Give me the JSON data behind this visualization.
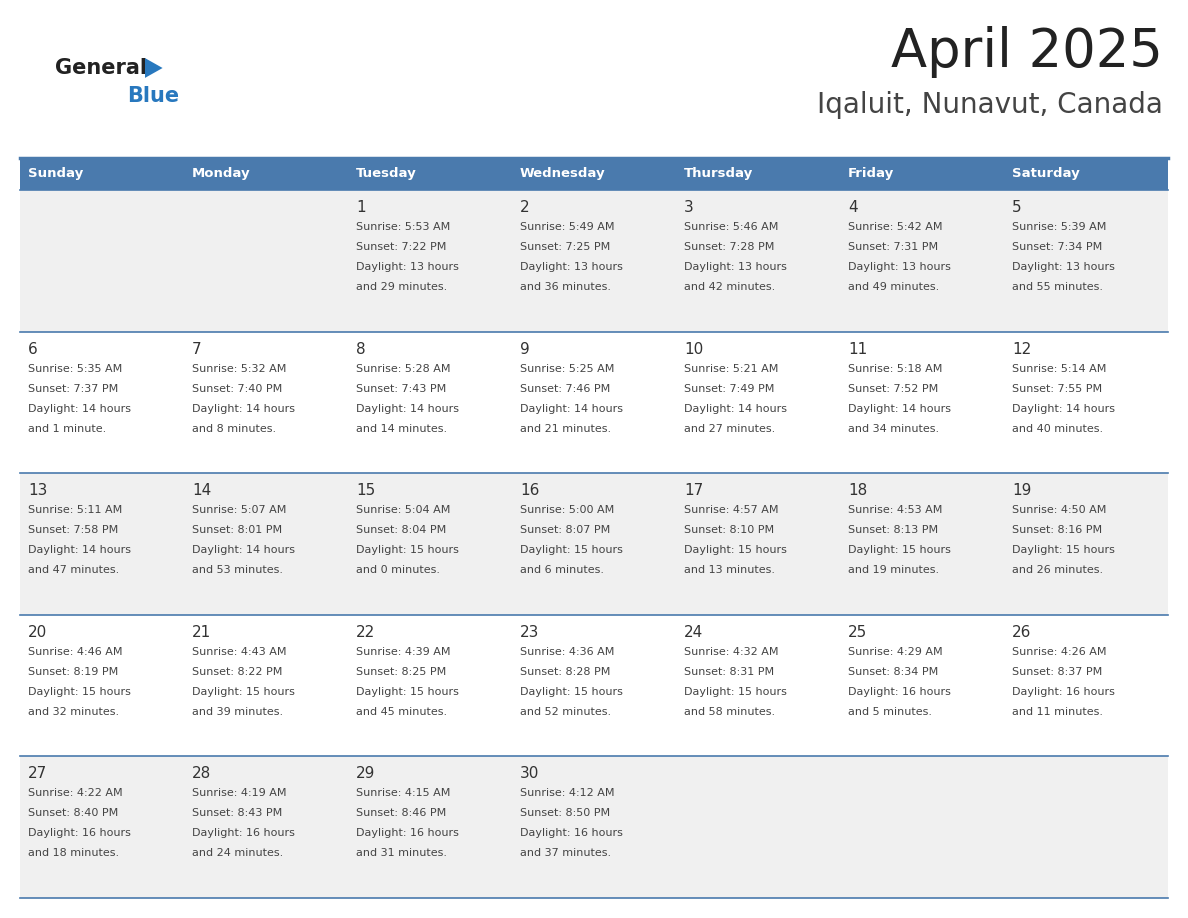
{
  "title": "April 2025",
  "subtitle": "Iqaluit, Nunavut, Canada",
  "header_bg": "#4a7aad",
  "header_text": "#ffffff",
  "day_names": [
    "Sunday",
    "Monday",
    "Tuesday",
    "Wednesday",
    "Thursday",
    "Friday",
    "Saturday"
  ],
  "cell_bg_row0": "#f0f0f0",
  "cell_bg_row1": "#ffffff",
  "cell_bg_row2": "#f0f0f0",
  "cell_bg_row3": "#ffffff",
  "cell_bg_row4": "#f0f0f0",
  "row_line_color": "#4a7aad",
  "day_num_color": "#333333",
  "text_color": "#444444",
  "title_color": "#222222",
  "subtitle_color": "#444444",
  "logo_text_color": "#222222",
  "logo_blue_color": "#2878be",
  "calendar": [
    [
      null,
      null,
      {
        "day": 1,
        "sunrise": "Sunrise: 5:53 AM",
        "sunset": "Sunset: 7:22 PM",
        "daylight": "Daylight: 13 hours",
        "daylight2": "and 29 minutes."
      },
      {
        "day": 2,
        "sunrise": "Sunrise: 5:49 AM",
        "sunset": "Sunset: 7:25 PM",
        "daylight": "Daylight: 13 hours",
        "daylight2": "and 36 minutes."
      },
      {
        "day": 3,
        "sunrise": "Sunrise: 5:46 AM",
        "sunset": "Sunset: 7:28 PM",
        "daylight": "Daylight: 13 hours",
        "daylight2": "and 42 minutes."
      },
      {
        "day": 4,
        "sunrise": "Sunrise: 5:42 AM",
        "sunset": "Sunset: 7:31 PM",
        "daylight": "Daylight: 13 hours",
        "daylight2": "and 49 minutes."
      },
      {
        "day": 5,
        "sunrise": "Sunrise: 5:39 AM",
        "sunset": "Sunset: 7:34 PM",
        "daylight": "Daylight: 13 hours",
        "daylight2": "and 55 minutes."
      }
    ],
    [
      {
        "day": 6,
        "sunrise": "Sunrise: 5:35 AM",
        "sunset": "Sunset: 7:37 PM",
        "daylight": "Daylight: 14 hours",
        "daylight2": "and 1 minute."
      },
      {
        "day": 7,
        "sunrise": "Sunrise: 5:32 AM",
        "sunset": "Sunset: 7:40 PM",
        "daylight": "Daylight: 14 hours",
        "daylight2": "and 8 minutes."
      },
      {
        "day": 8,
        "sunrise": "Sunrise: 5:28 AM",
        "sunset": "Sunset: 7:43 PM",
        "daylight": "Daylight: 14 hours",
        "daylight2": "and 14 minutes."
      },
      {
        "day": 9,
        "sunrise": "Sunrise: 5:25 AM",
        "sunset": "Sunset: 7:46 PM",
        "daylight": "Daylight: 14 hours",
        "daylight2": "and 21 minutes."
      },
      {
        "day": 10,
        "sunrise": "Sunrise: 5:21 AM",
        "sunset": "Sunset: 7:49 PM",
        "daylight": "Daylight: 14 hours",
        "daylight2": "and 27 minutes."
      },
      {
        "day": 11,
        "sunrise": "Sunrise: 5:18 AM",
        "sunset": "Sunset: 7:52 PM",
        "daylight": "Daylight: 14 hours",
        "daylight2": "and 34 minutes."
      },
      {
        "day": 12,
        "sunrise": "Sunrise: 5:14 AM",
        "sunset": "Sunset: 7:55 PM",
        "daylight": "Daylight: 14 hours",
        "daylight2": "and 40 minutes."
      }
    ],
    [
      {
        "day": 13,
        "sunrise": "Sunrise: 5:11 AM",
        "sunset": "Sunset: 7:58 PM",
        "daylight": "Daylight: 14 hours",
        "daylight2": "and 47 minutes."
      },
      {
        "day": 14,
        "sunrise": "Sunrise: 5:07 AM",
        "sunset": "Sunset: 8:01 PM",
        "daylight": "Daylight: 14 hours",
        "daylight2": "and 53 minutes."
      },
      {
        "day": 15,
        "sunrise": "Sunrise: 5:04 AM",
        "sunset": "Sunset: 8:04 PM",
        "daylight": "Daylight: 15 hours",
        "daylight2": "and 0 minutes."
      },
      {
        "day": 16,
        "sunrise": "Sunrise: 5:00 AM",
        "sunset": "Sunset: 8:07 PM",
        "daylight": "Daylight: 15 hours",
        "daylight2": "and 6 minutes."
      },
      {
        "day": 17,
        "sunrise": "Sunrise: 4:57 AM",
        "sunset": "Sunset: 8:10 PM",
        "daylight": "Daylight: 15 hours",
        "daylight2": "and 13 minutes."
      },
      {
        "day": 18,
        "sunrise": "Sunrise: 4:53 AM",
        "sunset": "Sunset: 8:13 PM",
        "daylight": "Daylight: 15 hours",
        "daylight2": "and 19 minutes."
      },
      {
        "day": 19,
        "sunrise": "Sunrise: 4:50 AM",
        "sunset": "Sunset: 8:16 PM",
        "daylight": "Daylight: 15 hours",
        "daylight2": "and 26 minutes."
      }
    ],
    [
      {
        "day": 20,
        "sunrise": "Sunrise: 4:46 AM",
        "sunset": "Sunset: 8:19 PM",
        "daylight": "Daylight: 15 hours",
        "daylight2": "and 32 minutes."
      },
      {
        "day": 21,
        "sunrise": "Sunrise: 4:43 AM",
        "sunset": "Sunset: 8:22 PM",
        "daylight": "Daylight: 15 hours",
        "daylight2": "and 39 minutes."
      },
      {
        "day": 22,
        "sunrise": "Sunrise: 4:39 AM",
        "sunset": "Sunset: 8:25 PM",
        "daylight": "Daylight: 15 hours",
        "daylight2": "and 45 minutes."
      },
      {
        "day": 23,
        "sunrise": "Sunrise: 4:36 AM",
        "sunset": "Sunset: 8:28 PM",
        "daylight": "Daylight: 15 hours",
        "daylight2": "and 52 minutes."
      },
      {
        "day": 24,
        "sunrise": "Sunrise: 4:32 AM",
        "sunset": "Sunset: 8:31 PM",
        "daylight": "Daylight: 15 hours",
        "daylight2": "and 58 minutes."
      },
      {
        "day": 25,
        "sunrise": "Sunrise: 4:29 AM",
        "sunset": "Sunset: 8:34 PM",
        "daylight": "Daylight: 16 hours",
        "daylight2": "and 5 minutes."
      },
      {
        "day": 26,
        "sunrise": "Sunrise: 4:26 AM",
        "sunset": "Sunset: 8:37 PM",
        "daylight": "Daylight: 16 hours",
        "daylight2": "and 11 minutes."
      }
    ],
    [
      {
        "day": 27,
        "sunrise": "Sunrise: 4:22 AM",
        "sunset": "Sunset: 8:40 PM",
        "daylight": "Daylight: 16 hours",
        "daylight2": "and 18 minutes."
      },
      {
        "day": 28,
        "sunrise": "Sunrise: 4:19 AM",
        "sunset": "Sunset: 8:43 PM",
        "daylight": "Daylight: 16 hours",
        "daylight2": "and 24 minutes."
      },
      {
        "day": 29,
        "sunrise": "Sunrise: 4:15 AM",
        "sunset": "Sunset: 8:46 PM",
        "daylight": "Daylight: 16 hours",
        "daylight2": "and 31 minutes."
      },
      {
        "day": 30,
        "sunrise": "Sunrise: 4:12 AM",
        "sunset": "Sunset: 8:50 PM",
        "daylight": "Daylight: 16 hours",
        "daylight2": "and 37 minutes."
      },
      null,
      null,
      null
    ]
  ]
}
